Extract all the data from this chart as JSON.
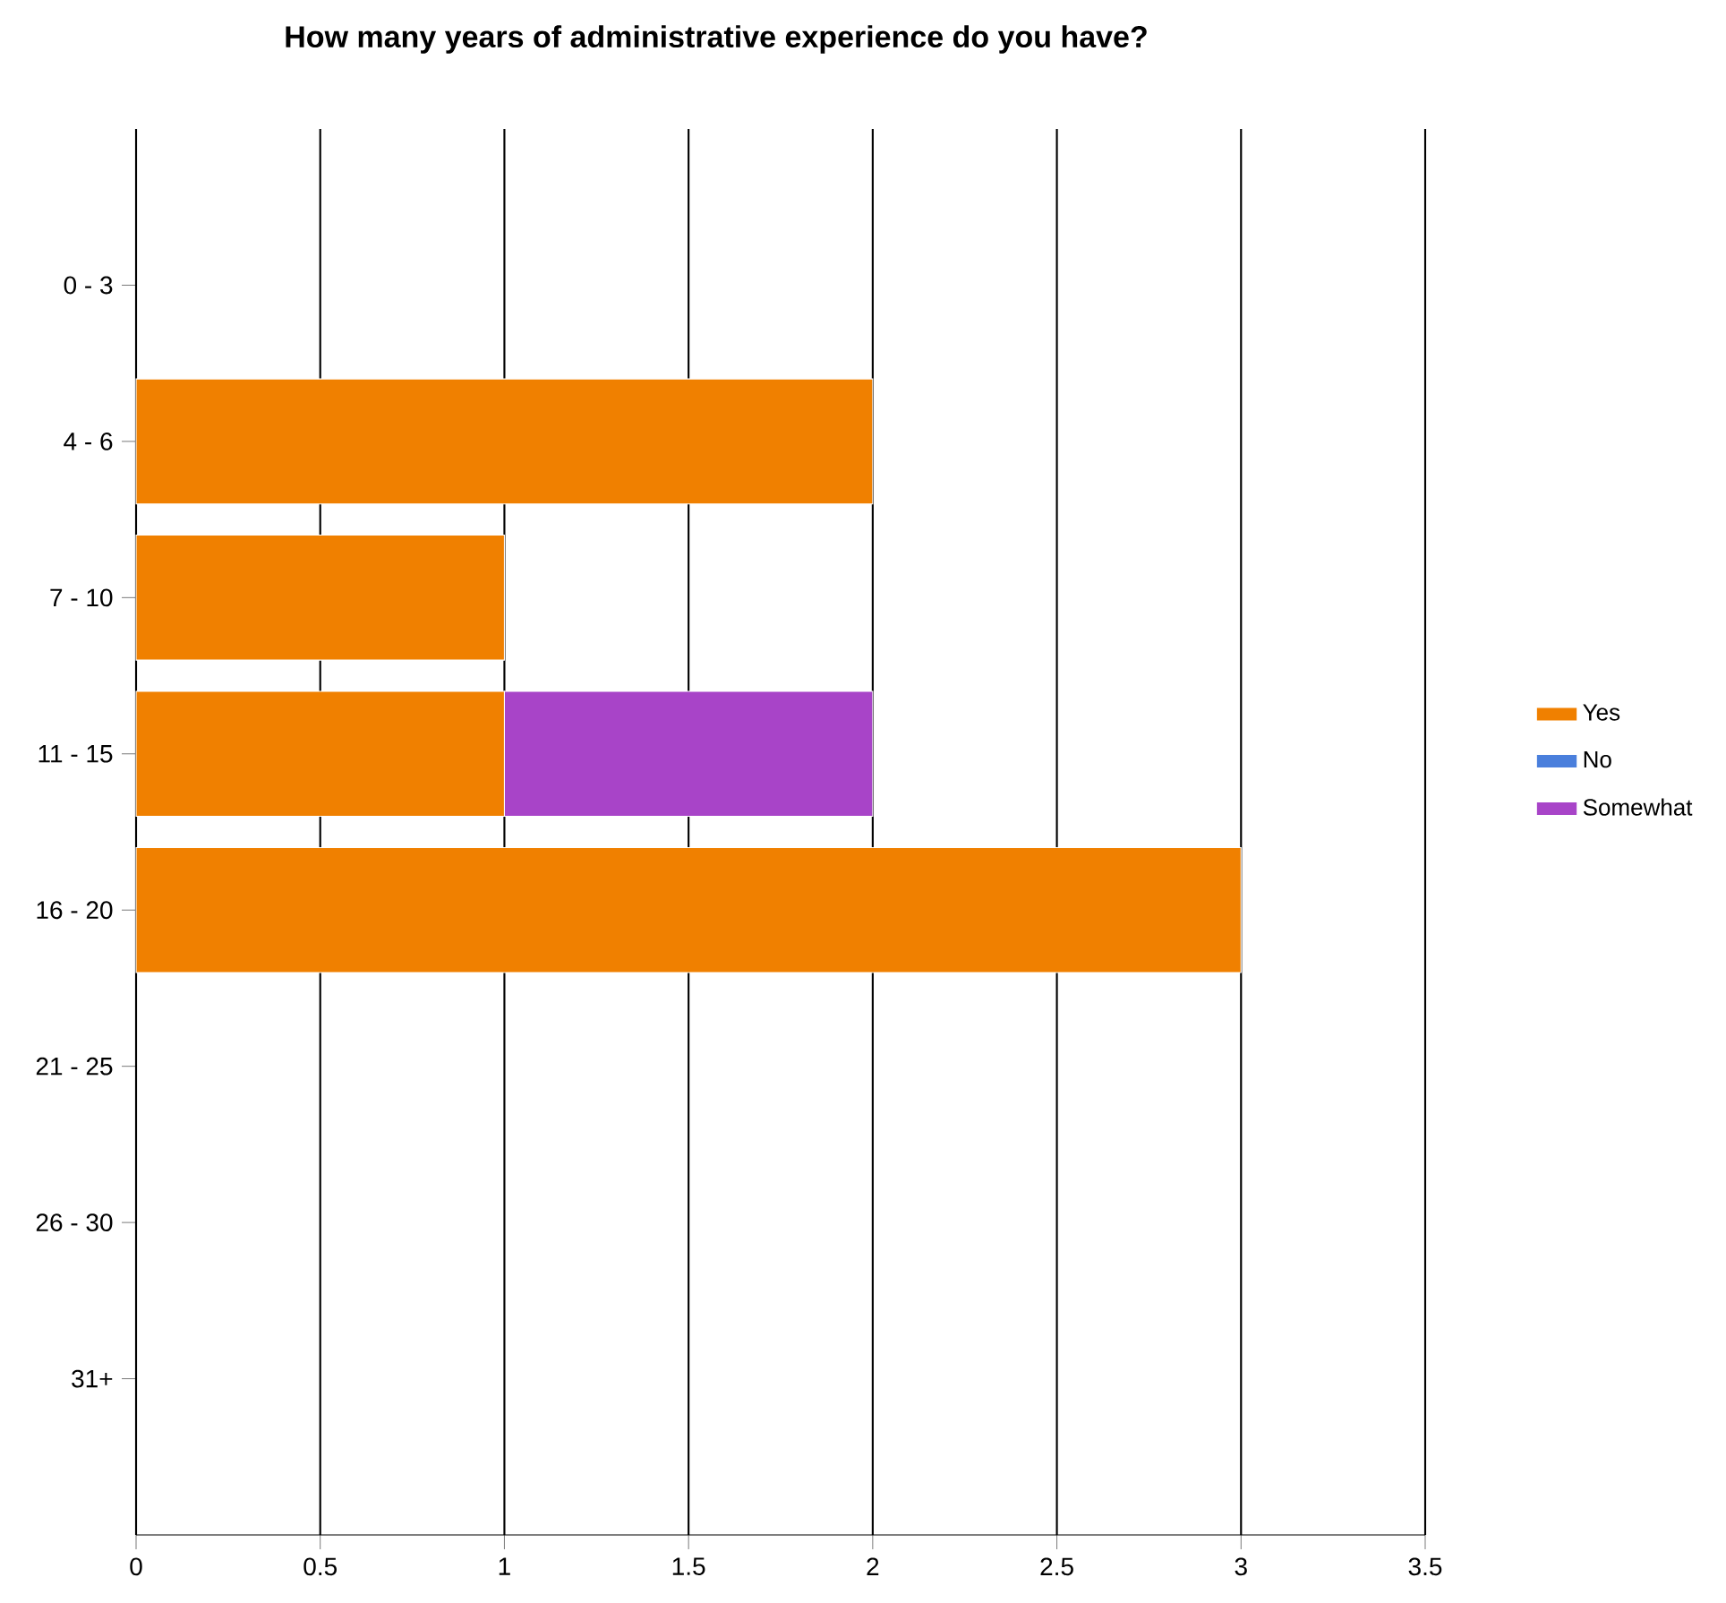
{
  "chart_data": {
    "type": "bar",
    "orientation": "horizontal",
    "stacked": true,
    "title": "How many years of administrative experience do you have?",
    "categories": [
      "0 - 3",
      "4 - 6",
      "7 - 10",
      "11 - 15",
      "16 - 20",
      "21 - 25",
      "26 - 30",
      "31+"
    ],
    "series": [
      {
        "name": "Yes",
        "color": "#f08000",
        "values": [
          0,
          2,
          1,
          1,
          3,
          0,
          0,
          0
        ]
      },
      {
        "name": "No",
        "color": "#4a7fdc",
        "values": [
          0,
          0,
          0,
          0,
          0,
          0,
          0,
          0
        ]
      },
      {
        "name": "Somewhat",
        "color": "#a844c8",
        "values": [
          0,
          0,
          0,
          1,
          0,
          0,
          0,
          0
        ]
      }
    ],
    "xlim": [
      0,
      3.5
    ],
    "xticks": [
      0,
      0.5,
      1,
      1.5,
      2,
      2.5,
      3,
      3.5
    ],
    "grid": "x",
    "legend": "right"
  }
}
